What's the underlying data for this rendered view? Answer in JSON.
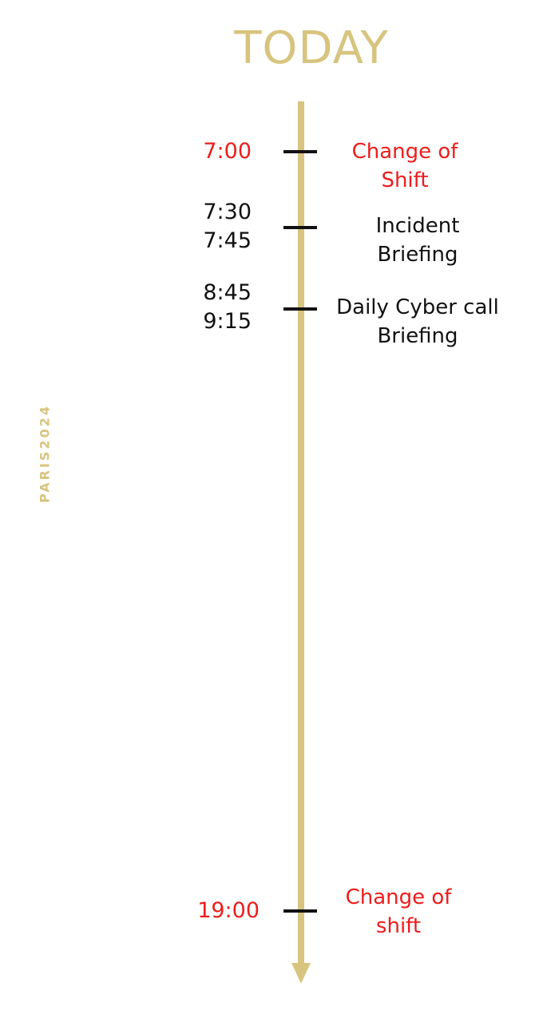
{
  "title": "TODAY",
  "watermark": "PARIS2024",
  "colors": {
    "accent": "#d7c47e",
    "highlight": "#ee1c1c",
    "text": "#111111"
  },
  "events": [
    {
      "times": [
        "7:00"
      ],
      "label_lines": [
        "Change of",
        "Shift"
      ],
      "highlight": true
    },
    {
      "times": [
        "7:30",
        "7:45"
      ],
      "label_lines": [
        "Incident",
        "Briefing"
      ],
      "highlight": false
    },
    {
      "times": [
        "8:45",
        "9:15"
      ],
      "label_lines": [
        "Daily Cyber call",
        "Briefing"
      ],
      "highlight": false
    },
    {
      "times": [
        "19:00"
      ],
      "label_lines": [
        "Change of",
        "shift"
      ],
      "highlight": true
    }
  ]
}
